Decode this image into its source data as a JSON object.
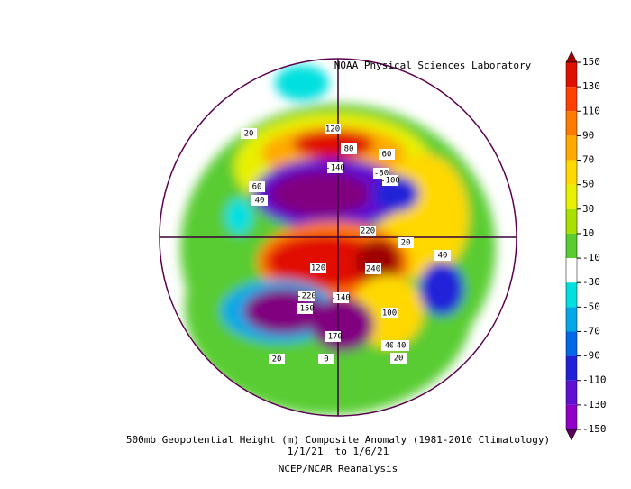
{
  "source": "NOAA Physical Sciences Laboratory",
  "title": "500mb Geopotential Height (m) Composite Anomaly (1981-2010 Climatology)",
  "date_range": "1/1/21  to 1/6/21",
  "dataset": "NCEP/NCAR Reanalysis",
  "colorbar": {
    "ticks": [
      150,
      130,
      110,
      90,
      70,
      50,
      30,
      10,
      -10,
      -30,
      -50,
      -70,
      -90,
      -110,
      -130,
      -150
    ],
    "colors": [
      "#a00000",
      "#e01000",
      "#ff4000",
      "#ff7a00",
      "#ffaa00",
      "#ffd800",
      "#e8f000",
      "#a8e000",
      "#58cc30",
      "#ffffff",
      "#00e0e0",
      "#00a8e8",
      "#0068e8",
      "#2020d8",
      "#6010d0",
      "#9000c8",
      "#b000b0",
      "#800080",
      "#5a005a"
    ]
  },
  "contour_labels": [
    "20",
    "120",
    "80",
    "60",
    "-140",
    "-80",
    "-100",
    "60",
    "40",
    "220",
    "20",
    "40",
    "120",
    "240",
    "40",
    "-220",
    "-140",
    "-150",
    "100",
    "-170",
    "40",
    "20",
    "0",
    "20"
  ]
}
